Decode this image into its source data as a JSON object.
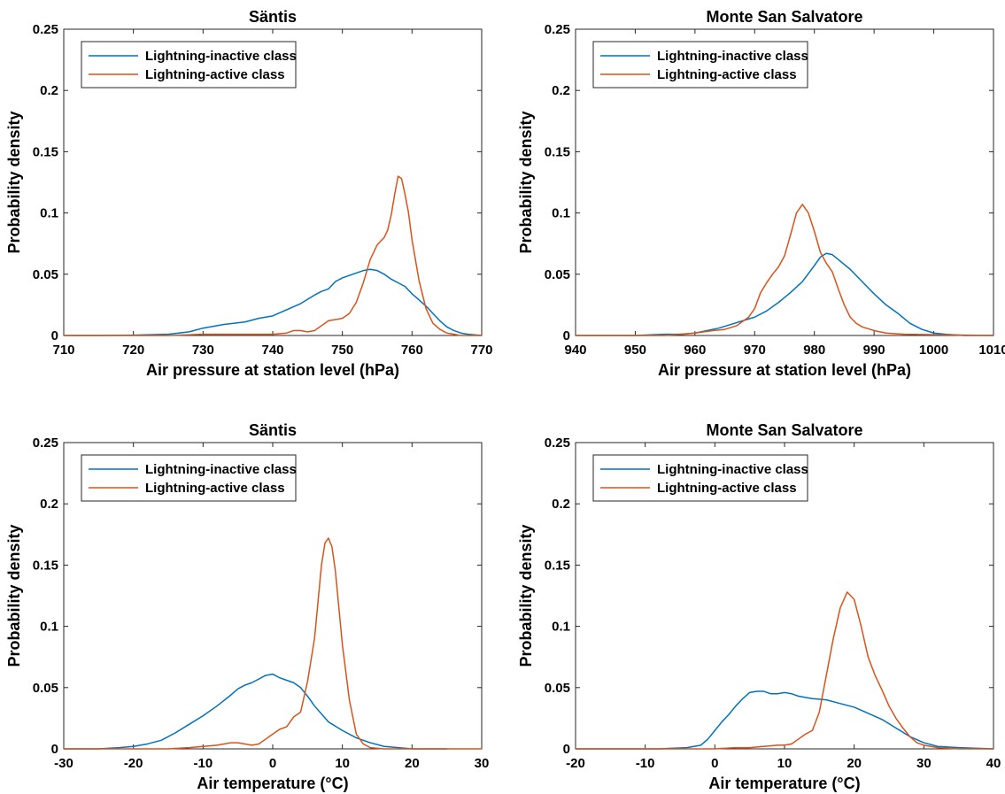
{
  "chart_data": [
    {
      "type": "line",
      "title": "Säntis",
      "xlabel": "Air pressure at station level (hPa)",
      "ylabel": "Probability density",
      "xlim": [
        710,
        770
      ],
      "ylim": [
        0,
        0.25
      ],
      "xticks": [
        710,
        720,
        730,
        740,
        750,
        760,
        770
      ],
      "xtick_labels": [
        "710",
        "720",
        "730",
        "740",
        "750",
        "760",
        "770"
      ],
      "yticks": [
        0,
        0.05,
        0.1,
        0.15,
        0.2,
        0.25
      ],
      "ytick_labels": [
        "0",
        "0.05",
        "0.1",
        "0.15",
        "0.2",
        "0.25"
      ],
      "grid": false,
      "legend": "top-left",
      "series": [
        {
          "name": "Lightning-inactive class",
          "color": "#0072BD",
          "x": [
            710,
            715,
            720,
            725,
            728,
            730,
            733,
            736,
            738,
            740,
            742,
            744,
            746,
            747,
            748,
            749,
            750,
            751,
            752,
            753,
            754,
            755,
            756,
            757,
            758,
            759,
            760,
            761,
            762,
            763,
            764,
            765,
            766,
            767,
            768,
            770
          ],
          "y": [
            0,
            0,
            0.0003,
            0.001,
            0.003,
            0.006,
            0.009,
            0.011,
            0.014,
            0.016,
            0.021,
            0.026,
            0.033,
            0.036,
            0.038,
            0.044,
            0.047,
            0.049,
            0.051,
            0.053,
            0.054,
            0.053,
            0.05,
            0.046,
            0.043,
            0.04,
            0.034,
            0.029,
            0.024,
            0.018,
            0.012,
            0.007,
            0.004,
            0.002,
            0.001,
            0
          ]
        },
        {
          "name": "Lightning-active class",
          "color": "#D95319",
          "x": [
            710,
            725,
            730,
            735,
            740,
            742,
            743,
            744,
            745,
            746,
            747,
            748,
            749,
            750,
            751,
            752,
            753,
            754,
            755,
            756,
            756.5,
            757,
            757.5,
            758,
            758.5,
            759,
            759.5,
            760,
            761,
            762,
            763,
            764,
            765,
            766,
            767,
            770
          ],
          "y": [
            0,
            0,
            0.001,
            0.001,
            0.001,
            0.002,
            0.004,
            0.004,
            0.003,
            0.004,
            0.008,
            0.012,
            0.013,
            0.014,
            0.018,
            0.027,
            0.043,
            0.062,
            0.074,
            0.08,
            0.086,
            0.098,
            0.115,
            0.13,
            0.128,
            0.115,
            0.1,
            0.078,
            0.045,
            0.022,
            0.01,
            0.005,
            0.002,
            0.001,
            0,
            0
          ]
        }
      ]
    },
    {
      "type": "line",
      "title": "Monte San Salvatore",
      "xlabel": "Air pressure at station level (hPa)",
      "ylabel": "Probability density",
      "xlim": [
        940,
        1010
      ],
      "ylim": [
        0,
        0.25
      ],
      "xticks": [
        940,
        950,
        960,
        970,
        980,
        990,
        1000,
        1010
      ],
      "xtick_labels": [
        "940",
        "950",
        "960",
        "970",
        "980",
        "990",
        "1000",
        "1010"
      ],
      "yticks": [
        0,
        0.05,
        0.1,
        0.15,
        0.2,
        0.25
      ],
      "ytick_labels": [
        "0",
        "0.05",
        "0.1",
        "0.15",
        "0.2",
        "0.25"
      ],
      "grid": false,
      "legend": "top-left",
      "series": [
        {
          "name": "Lightning-inactive class",
          "color": "#0072BD",
          "x": [
            940,
            950,
            955,
            958,
            960,
            962,
            964,
            966,
            968,
            970,
            972,
            974,
            976,
            978,
            980,
            981,
            982,
            983,
            984,
            986,
            988,
            990,
            992,
            994,
            996,
            998,
            1000,
            1002,
            1005,
            1010
          ],
          "y": [
            0,
            0,
            0.001,
            0.001,
            0.002,
            0.004,
            0.006,
            0.009,
            0.012,
            0.015,
            0.02,
            0.027,
            0.035,
            0.044,
            0.057,
            0.064,
            0.067,
            0.066,
            0.062,
            0.054,
            0.044,
            0.034,
            0.025,
            0.018,
            0.01,
            0.005,
            0.002,
            0.001,
            0,
            0
          ]
        },
        {
          "name": "Lightning-active class",
          "color": "#D95319",
          "x": [
            940,
            955,
            960,
            963,
            965,
            967,
            969,
            970,
            971,
            972,
            973,
            974,
            975,
            976,
            977,
            978,
            979,
            980,
            981,
            982,
            983,
            984,
            985,
            986,
            987,
            988,
            990,
            992,
            995,
            1010
          ],
          "y": [
            0,
            0,
            0.002,
            0.004,
            0.005,
            0.008,
            0.015,
            0.022,
            0.035,
            0.043,
            0.05,
            0.056,
            0.065,
            0.082,
            0.1,
            0.107,
            0.1,
            0.085,
            0.068,
            0.059,
            0.052,
            0.038,
            0.025,
            0.015,
            0.01,
            0.007,
            0.004,
            0.002,
            0.001,
            0
          ]
        }
      ]
    },
    {
      "type": "line",
      "title": "Säntis",
      "xlabel": "Air temperature (°C)",
      "ylabel": "Probability density",
      "xlim": [
        -30,
        30
      ],
      "ylim": [
        0,
        0.25
      ],
      "xticks": [
        -30,
        -20,
        -10,
        0,
        10,
        20,
        30
      ],
      "xtick_labels": [
        "-30",
        "-20",
        "-10",
        "0",
        "10",
        "20",
        "30"
      ],
      "yticks": [
        0,
        0.05,
        0.1,
        0.15,
        0.2,
        0.25
      ],
      "ytick_labels": [
        "0",
        "0.05",
        "0.1",
        "0.15",
        "0.2",
        "0.25"
      ],
      "grid": false,
      "legend": "top-left",
      "series": [
        {
          "name": "Lightning-inactive class",
          "color": "#0072BD",
          "x": [
            -30,
            -25,
            -22,
            -20,
            -18,
            -16,
            -14,
            -12,
            -10,
            -8,
            -6,
            -5,
            -4,
            -3,
            -2,
            -1,
            0,
            1,
            2,
            3,
            4,
            5,
            6,
            8,
            10,
            12,
            14,
            16,
            18,
            20,
            22,
            25
          ],
          "y": [
            0,
            0,
            0.001,
            0.002,
            0.004,
            0.007,
            0.013,
            0.02,
            0.027,
            0.035,
            0.044,
            0.049,
            0.052,
            0.054,
            0.057,
            0.06,
            0.061,
            0.058,
            0.056,
            0.054,
            0.05,
            0.043,
            0.035,
            0.022,
            0.015,
            0.009,
            0.005,
            0.002,
            0.001,
            0,
            0,
            0
          ]
        },
        {
          "name": "Lightning-active class",
          "color": "#D95319",
          "x": [
            -30,
            -15,
            -12,
            -10,
            -8,
            -7,
            -6,
            -5,
            -4,
            -3,
            -2,
            -1,
            0,
            1,
            2,
            3,
            3.5,
            4,
            5,
            6,
            6.5,
            7,
            7.5,
            8,
            8.5,
            9,
            9.5,
            10,
            11,
            12,
            13,
            14,
            16,
            30
          ],
          "y": [
            0,
            0,
            0.001,
            0.002,
            0.003,
            0.004,
            0.005,
            0.005,
            0.004,
            0.003,
            0.004,
            0.008,
            0.012,
            0.016,
            0.018,
            0.026,
            0.028,
            0.03,
            0.055,
            0.09,
            0.12,
            0.15,
            0.168,
            0.172,
            0.165,
            0.145,
            0.115,
            0.085,
            0.04,
            0.012,
            0.004,
            0.001,
            0,
            0
          ]
        }
      ]
    },
    {
      "type": "line",
      "title": "Monte San Salvatore",
      "xlabel": "Air temperature (°C)",
      "ylabel": "Probability density",
      "xlim": [
        -20,
        40
      ],
      "ylim": [
        0,
        0.25
      ],
      "xticks": [
        -20,
        -10,
        0,
        10,
        20,
        30,
        40
      ],
      "xtick_labels": [
        "-20",
        "-10",
        "0",
        "10",
        "20",
        "30",
        "40"
      ],
      "yticks": [
        0,
        0.05,
        0.1,
        0.15,
        0.2,
        0.25
      ],
      "ytick_labels": [
        "0",
        "0.05",
        "0.1",
        "0.15",
        "0.2",
        "0.25"
      ],
      "grid": false,
      "legend": "top-left",
      "series": [
        {
          "name": "Lightning-inactive class",
          "color": "#0072BD",
          "x": [
            -20,
            -8,
            -4,
            -2,
            -1,
            0,
            1,
            2,
            3,
            4,
            5,
            6,
            7,
            8,
            9,
            10,
            11,
            12,
            14,
            16,
            18,
            20,
            22,
            24,
            26,
            28,
            30,
            32,
            35,
            40
          ],
          "y": [
            0,
            0,
            0.001,
            0.003,
            0.008,
            0.015,
            0.022,
            0.028,
            0.035,
            0.041,
            0.046,
            0.047,
            0.047,
            0.045,
            0.045,
            0.046,
            0.045,
            0.043,
            0.041,
            0.04,
            0.037,
            0.034,
            0.029,
            0.024,
            0.017,
            0.01,
            0.005,
            0.002,
            0.001,
            0
          ]
        },
        {
          "name": "Lightning-active class",
          "color": "#D95319",
          "x": [
            -20,
            0,
            3,
            5,
            7,
            9,
            10,
            11,
            12,
            13,
            14,
            15,
            16,
            17,
            18,
            19,
            20,
            21,
            22,
            23,
            24,
            25,
            26,
            27,
            28,
            29,
            30,
            32,
            35,
            40
          ],
          "y": [
            0,
            0,
            0.001,
            0.001,
            0.002,
            0.003,
            0.003,
            0.004,
            0.008,
            0.012,
            0.015,
            0.03,
            0.06,
            0.09,
            0.115,
            0.128,
            0.122,
            0.1,
            0.075,
            0.06,
            0.048,
            0.035,
            0.025,
            0.017,
            0.01,
            0.005,
            0.003,
            0.001,
            0,
            0
          ]
        }
      ]
    }
  ]
}
